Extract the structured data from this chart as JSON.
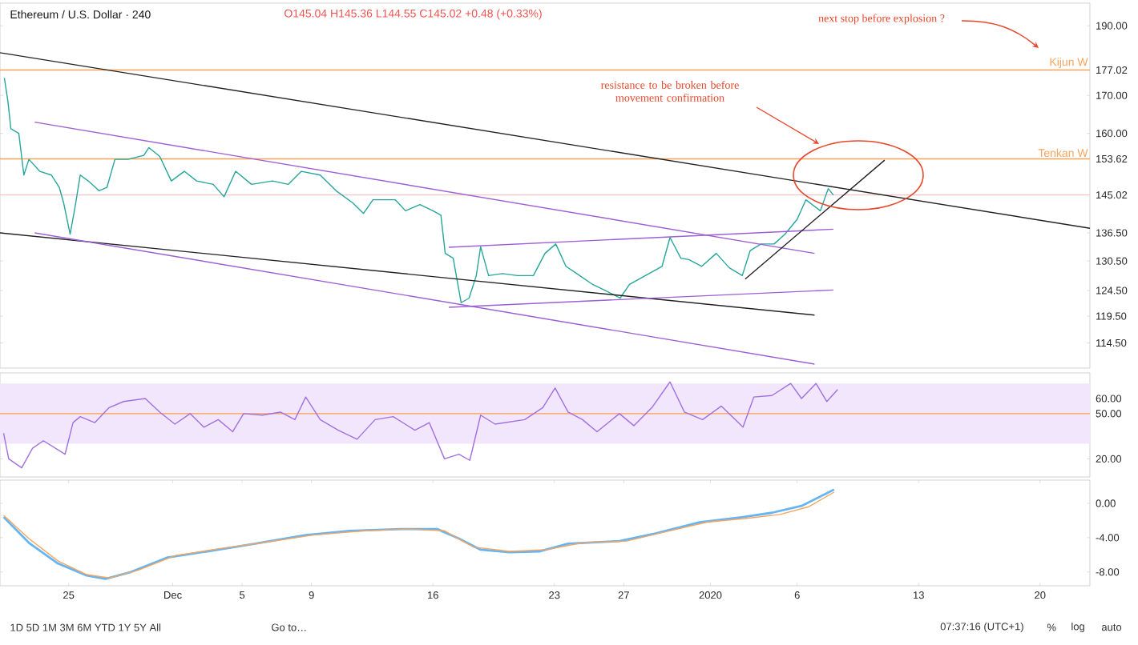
{
  "chart_data": [
    {
      "type": "line",
      "title": "Ethereum / U.S. Dollar · 240",
      "subtitle": "O145.04 H145.36 L144.55 C145.02 +0.48 (+0.33%)",
      "log": true,
      "tick_labels": "y",
      "xlim": [
        "2019-11-21T01:00",
        "2020-01-22T21:00"
      ],
      "ylim": [
        110,
        197
      ],
      "yticks": [
        {
          "value": 114.5,
          "label": "114.50"
        },
        {
          "value": 119.5,
          "label": "119.50"
        },
        {
          "value": 124.5,
          "label": "124.50"
        },
        {
          "value": 130.5,
          "label": "130.50"
        },
        {
          "value": 136.5,
          "label": "136.50"
        },
        145.02,
        153.62,
        {
          "value": 160,
          "label": "160.00"
        },
        {
          "value": 170,
          "label": "170.00"
        },
        177.02,
        {
          "value": 190,
          "label": "190.00"
        }
      ],
      "ref_lines": [
        {
          "axis": "y",
          "value": 177.02,
          "label": "Kijun W",
          "color": "#f7a35c"
        },
        {
          "axis": "y",
          "value": 153.62,
          "label": "Tenkan W",
          "color": "#f7a35c"
        },
        {
          "axis": "y",
          "value": 145.02,
          "color": "#f6c4c4"
        }
      ],
      "annotations": [
        "resistance to be broken before movement confirmation",
        "next stop before explosion ?"
      ],
      "series": [
        {
          "color": "#26a69a",
          "x": [
            "2019-11-21T07:00",
            "2019-11-21T12:00",
            "2019-11-21T16:00",
            "2019-11-22T03:00",
            "2019-11-22T10:00",
            "2019-11-22T17:00",
            "2019-11-23T08:00",
            "2019-11-24T00:00",
            "2019-11-24T11:00",
            "2019-11-24T17:00",
            "2019-11-25T02:00",
            "2019-11-25T09:00",
            "2019-11-25T16:00",
            "2019-11-26T03:00",
            "2019-11-26T18:00",
            "2019-11-27T05:00",
            "2019-11-27T16:00",
            "2019-11-28T10:00",
            "2019-11-29T08:00",
            "2019-11-29T15:00",
            "2019-11-30T06:00",
            "2019-11-30T22:00",
            "2019-12-01T16:00",
            "2019-12-02T09:00",
            "2019-12-03T08:00",
            "2019-12-03T23:00",
            "2019-12-04T15:00",
            "2019-12-05T13:00",
            "2019-12-06T18:00",
            "2019-12-07T16:00",
            "2019-12-08T10:00",
            "2019-12-09T12:00",
            "2019-12-10T10:00",
            "2019-12-11T09:00",
            "2019-12-12T00:00",
            "2019-12-12T13:00",
            "2019-12-13T20:00",
            "2019-12-14T10:00",
            "2019-12-15T06:00",
            "2019-12-16T00:00",
            "2019-12-16T11:00",
            "2019-12-16T17:00",
            "2019-12-17T04:00",
            "2019-12-17T15:00",
            "2019-12-18T02:00",
            "2019-12-18T12:00",
            "2019-12-18T18:00",
            "2019-12-19T05:00",
            "2019-12-20T00:00",
            "2019-12-20T21:00",
            "2019-12-21T19:00",
            "2019-12-22T11:00",
            "2019-12-23T02:00",
            "2019-12-23T16:00",
            "2019-12-24T07:00",
            "2019-12-25T05:00",
            "2019-12-25T21:00",
            "2019-12-26T19:00",
            "2019-12-27T08:00",
            "2019-12-28T06:00",
            "2019-12-29T05:00",
            "2019-12-29T16:00",
            "2019-12-30T07:00",
            "2019-12-30T18:00",
            "2019-12-31T12:00",
            "2020-01-01T08:00",
            "2020-01-02T02:00",
            "2020-01-02T20:00",
            "2020-01-03T07:00",
            "2020-01-03T22:00",
            "2020-01-04T16:00",
            "2020-01-05T07:00",
            "2020-01-06T00:00",
            "2020-01-06T12:00",
            "2020-01-07T08:00",
            "2020-01-07T19:00",
            "2020-01-08T02:00"
          ],
          "values": [
            174.8,
            168.3,
            161.2,
            160.0,
            149.7,
            153.5,
            150.6,
            149.7,
            146.8,
            143.2,
            136.2,
            142.4,
            149.7,
            148.3,
            146.0,
            146.8,
            153.5,
            153.5,
            154.5,
            156.4,
            154.2,
            148.3,
            150.6,
            148.3,
            147.5,
            144.6,
            150.6,
            147.5,
            148.3,
            147.5,
            150.6,
            149.7,
            146.0,
            143.2,
            140.8,
            143.9,
            143.9,
            141.4,
            142.8,
            141.4,
            140.4,
            132.1,
            131.1,
            122.1,
            123.0,
            127.5,
            133.5,
            127.5,
            127.9,
            127.5,
            127.5,
            132.1,
            134.1,
            129.4,
            127.9,
            125.7,
            124.6,
            123.0,
            125.7,
            127.5,
            129.4,
            135.5,
            131.1,
            130.8,
            129.4,
            132.1,
            129.1,
            127.5,
            132.7,
            134.1,
            134.1,
            136.2,
            139.5,
            143.9,
            141.4,
            146.5,
            145.02
          ]
        },
        {
          "color": "#222222",
          "x": [
            "2019-11-21T01:00",
            "2020-01-22T21:00"
          ],
          "values": [
            182.0,
            137.5
          ]
        },
        {
          "color": "#222222",
          "x": [
            "2019-11-21T01:00",
            "2020-01-07T00:00"
          ],
          "values": [
            136.5,
            119.7
          ]
        },
        {
          "color": "#9c5fd6",
          "x": [
            "2019-11-23T01:00",
            "2020-01-07T00:00"
          ],
          "values": [
            162.9,
            132.1
          ]
        },
        {
          "color": "#9c5fd6",
          "x": [
            "2019-11-23T01:00",
            "2020-01-07T00:00"
          ],
          "values": [
            136.5,
            110.7
          ]
        },
        {
          "color": "#9c5fd6",
          "x": [
            "2019-12-16T22:00",
            "2020-01-08T02:00"
          ],
          "values": [
            133.4,
            137.3
          ]
        },
        {
          "color": "#9c5fd6",
          "x": [
            "2019-12-16T22:00",
            "2020-01-08T02:00"
          ],
          "values": [
            121.2,
            124.6
          ]
        },
        {
          "color": "#222222",
          "x": [
            "2020-01-03T00:00",
            "2020-01-11T01:00"
          ],
          "values": [
            126.8,
            153.3
          ]
        }
      ]
    },
    {
      "type": "line",
      "tick_labels": "y",
      "xlim": [
        "2019-11-21T01:00",
        "2020-01-22T21:00"
      ],
      "ylim": [
        8,
        77
      ],
      "yticks": [
        {
          "value": 20,
          "label": "20.00"
        },
        {
          "value": 50,
          "label": "50.00"
        },
        {
          "value": 60,
          "label": "60.00"
        }
      ],
      "bands": [
        {
          "axis": "y",
          "from": 30,
          "to": 70,
          "color": "#f1e6fb"
        }
      ],
      "ref_lines": [
        {
          "axis": "y",
          "value": 50,
          "color": "#f5a04a"
        }
      ],
      "series": [
        {
          "color": "#a070e0",
          "x": [
            "2019-11-21T06:00",
            "2019-11-21T13:00",
            "2019-11-22T07:00",
            "2019-11-22T22:00",
            "2019-11-23T13:00",
            "2019-11-24T19:00",
            "2019-11-25T06:00",
            "2019-11-25T16:00",
            "2019-11-26T12:00",
            "2019-11-27T08:00",
            "2019-11-28T04:00",
            "2019-11-29T10:00",
            "2019-11-30T06:00",
            "2019-12-01T03:00",
            "2019-12-02T00:00",
            "2019-12-02T19:00",
            "2019-12-03T15:00",
            "2019-12-04T11:00",
            "2019-12-05T02:00",
            "2019-12-06T04:00",
            "2019-12-07T05:00",
            "2019-12-08T01:00",
            "2019-12-08T16:00",
            "2019-12-09T12:00",
            "2019-12-10T13:00",
            "2019-12-11T15:00",
            "2019-12-12T16:00",
            "2019-12-13T17:00",
            "2019-12-14T23:00",
            "2019-12-15T19:00",
            "2019-12-16T16:00",
            "2019-12-17T12:00",
            "2019-12-18T03:00",
            "2019-12-18T18:00",
            "2019-12-19T14:00",
            "2019-12-21T07:00",
            "2019-12-22T08:00",
            "2019-12-23T01:00",
            "2019-12-23T19:00",
            "2019-12-24T15:00",
            "2019-12-25T11:00",
            "2019-12-26T18:00",
            "2019-12-27T14:00",
            "2019-12-28T15:00",
            "2019-12-29T16:00",
            "2019-12-30T12:00",
            "2019-12-31T13:00",
            "2020-01-01T15:00",
            "2020-01-02T21:00",
            "2020-01-03T12:00",
            "2020-01-04T13:00",
            "2020-01-05T15:00",
            "2020-01-06T06:00",
            "2020-01-07T02:00",
            "2020-01-07T17:00",
            "2020-01-08T08:00"
          ],
          "values": [
            37,
            20,
            14,
            27,
            32,
            23,
            44,
            48,
            44,
            54,
            58,
            60,
            51,
            43,
            50,
            41,
            46,
            38,
            50,
            49,
            51,
            46,
            61,
            46,
            39,
            33,
            46,
            48,
            39,
            44,
            20,
            23,
            19,
            49,
            43,
            46,
            54,
            67,
            51,
            46,
            38,
            50,
            42,
            54,
            71,
            51,
            46,
            55,
            41,
            61,
            62,
            70,
            60,
            70,
            58,
            66
          ]
        }
      ]
    },
    {
      "type": "line",
      "xlim": [
        "2019-11-21T01:00",
        "2020-01-22T21:00"
      ],
      "ylim": [
        -9.6,
        2.7
      ],
      "yticks": [
        {
          "value": -8,
          "label": "-8.00"
        },
        {
          "value": -4,
          "label": "-4.00"
        },
        {
          "value": 0,
          "label": "0.00"
        }
      ],
      "xticks": [
        {
          "value": "2019-11-25",
          "label": "25"
        },
        {
          "value": "2019-12-01",
          "label": "Dec"
        },
        {
          "value": "2019-12-05",
          "label": "5"
        },
        {
          "value": "2019-12-09",
          "label": "9"
        },
        {
          "value": "2019-12-16",
          "label": "16"
        },
        {
          "value": "2019-12-23",
          "label": "23"
        },
        {
          "value": "2019-12-27",
          "label": "27"
        },
        {
          "value": "2020-01-01",
          "label": "2020"
        },
        {
          "value": "2020-01-06",
          "label": "6"
        },
        {
          "value": "2020-01-13",
          "label": "13"
        },
        {
          "value": "2020-01-20",
          "label": "20"
        }
      ],
      "annotations": [
        "1D   5D   1M   3M   6M   YTD   1Y   5Y   All",
        "Go to…",
        "07:37:16 (UTC+1)",
        "%",
        "log",
        "auto"
      ],
      "series": [
        {
          "color": "#64b5f6",
          "x": [
            "2019-11-21T06:00",
            "2019-11-22T17:00",
            "2019-11-24T09:00",
            "2019-11-26T01:00",
            "2019-11-27T03:00",
            "2019-11-28T14:00",
            "2019-11-30T17:00",
            "2019-12-03T15:00",
            "2019-12-05T18:00",
            "2019-12-08T16:00",
            "2019-12-11T05:00",
            "2019-12-14T03:00",
            "2019-12-16T06:00",
            "2019-12-17T12:00",
            "2019-12-18T18:00",
            "2019-12-20T10:00",
            "2019-12-22T03:00",
            "2019-12-23T19:00",
            "2019-12-26T18:00",
            "2019-12-28T20:00",
            "2019-12-31T09:00",
            "2020-01-02T21:00",
            "2020-01-04T13:00",
            "2020-01-06T06:00",
            "2020-01-08T03:00"
          ],
          "values": [
            -1.6,
            -4.6,
            -7.0,
            -8.4,
            -8.8,
            -8.0,
            -6.3,
            -5.4,
            -4.7,
            -3.7,
            -3.2,
            -3.0,
            -3.0,
            -4.1,
            -5.4,
            -5.7,
            -5.6,
            -4.7,
            -4.4,
            -3.5,
            -2.2,
            -1.6,
            -1.1,
            -0.3,
            1.6
          ]
        },
        {
          "color": "#f7a35c",
          "x": [
            "2019-11-21T06:00",
            "2019-11-22T17:00",
            "2019-11-24T09:00",
            "2019-11-26T01:00",
            "2019-11-27T08:00",
            "2019-11-29T00:00",
            "2019-12-01T03:00",
            "2019-12-03T15:00",
            "2019-12-06T04:00",
            "2019-12-09T02:00",
            "2019-12-12T01:00",
            "2019-12-14T13:00",
            "2019-12-16T16:00",
            "2019-12-18T08:00",
            "2019-12-20T10:00",
            "2019-12-22T13:00",
            "2019-12-24T15:00",
            "2019-12-27T04:00",
            "2019-12-29T06:00",
            "2019-12-31T19:00",
            "2020-01-03T07:00",
            "2020-01-05T00:00",
            "2020-01-06T16:00",
            "2020-01-08T03:00"
          ],
          "values": [
            -1.4,
            -4.1,
            -6.7,
            -8.3,
            -8.7,
            -7.8,
            -6.1,
            -5.3,
            -4.6,
            -3.7,
            -3.2,
            -3.0,
            -3.2,
            -5.1,
            -5.6,
            -5.4,
            -4.6,
            -4.4,
            -3.4,
            -2.2,
            -1.7,
            -1.3,
            -0.4,
            1.3
          ]
        }
      ]
    }
  ]
}
